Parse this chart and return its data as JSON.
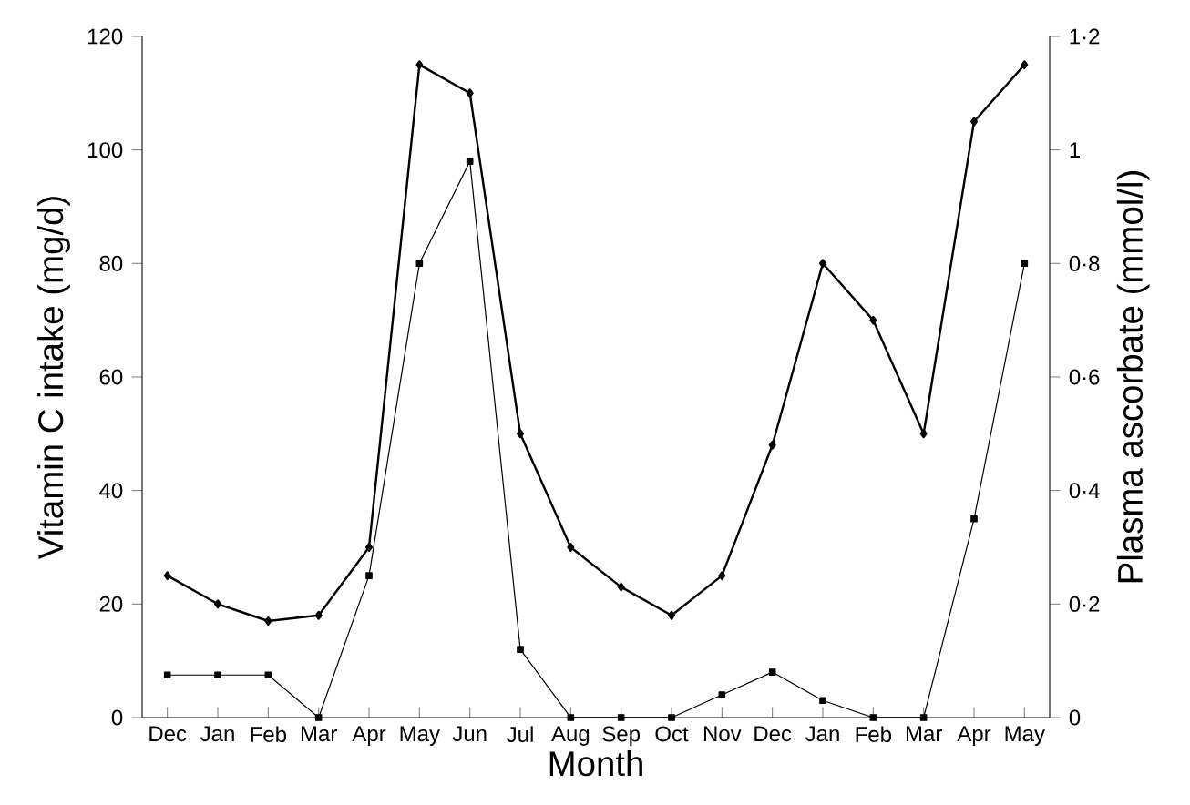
{
  "chart_data": {
    "type": "line",
    "xlabel": "Month",
    "ylabel": "Vitamin C intake (mg/d)",
    "y2label": "Plasma ascorbate (mmol/l)",
    "categories": [
      "Dec",
      "Jan",
      "Feb",
      "Mar",
      "Apr",
      "May",
      "Jun",
      "Jul",
      "Aug",
      "Sep",
      "Oct",
      "Nov",
      "Dec",
      "Jan",
      "Feb",
      "Mar",
      "Apr",
      "May"
    ],
    "ylim": [
      0,
      120
    ],
    "yticks": [
      0,
      20,
      40,
      60,
      80,
      100,
      120
    ],
    "y2lim": [
      0,
      1.2
    ],
    "y2ticks": [
      0,
      {
        "value": 0.2,
        "label": "0·2"
      },
      {
        "value": 0.4,
        "label": "0·4"
      },
      {
        "value": 0.6,
        "label": "0·6"
      },
      {
        "value": 0.8,
        "label": "0·8"
      },
      1,
      {
        "value": 1.2,
        "label": "1·2"
      }
    ],
    "grid": false,
    "line_style": "solid",
    "series": [
      {
        "color": "#000000",
        "marker": "diamond",
        "values": [
          25,
          20,
          17,
          18,
          30,
          115,
          110,
          50,
          30,
          23,
          18,
          25,
          48,
          80,
          70,
          50,
          105,
          115
        ]
      },
      {
        "color": "#000000",
        "marker": "square",
        "axis": "y2",
        "values": [
          0.075,
          0.075,
          0.075,
          0,
          0.25,
          0.8,
          0.98,
          0.12,
          0,
          0,
          0,
          0.04,
          0.08,
          0.03,
          0,
          0,
          0.35,
          0.8
        ]
      }
    ]
  }
}
